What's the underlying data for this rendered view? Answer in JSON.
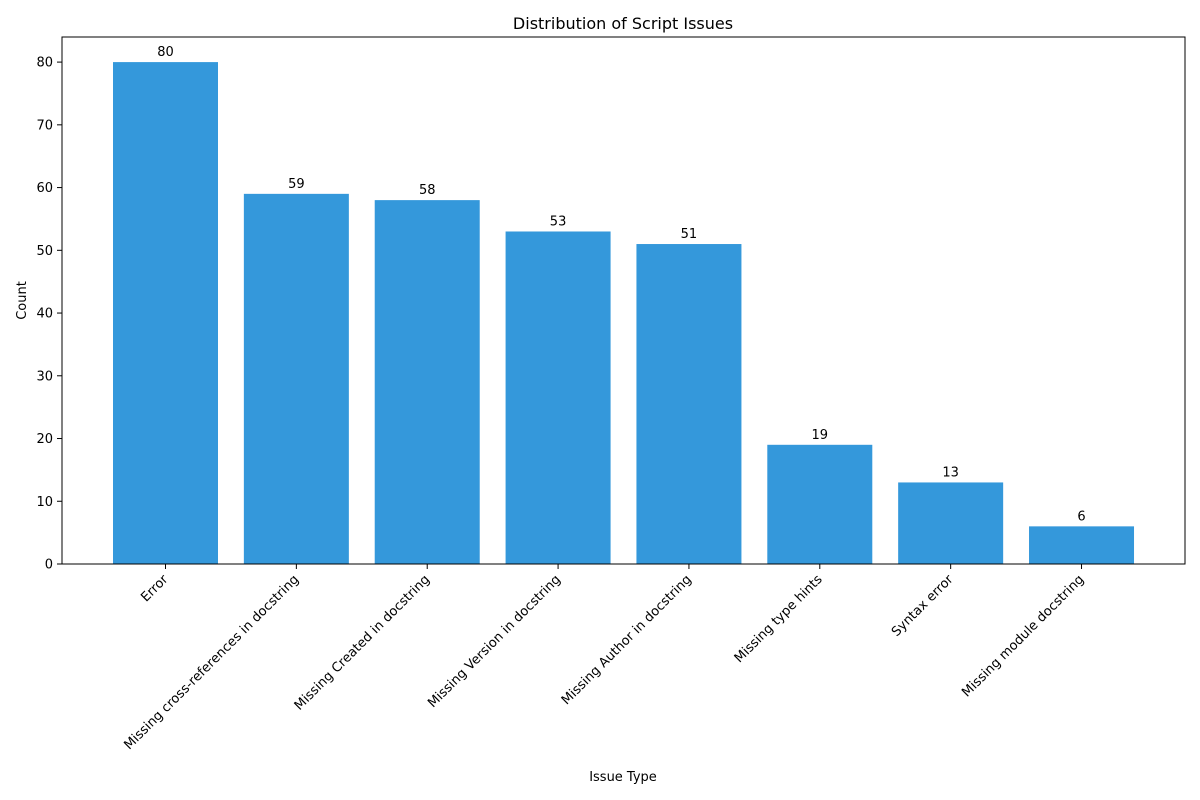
{
  "chart_data": {
    "type": "bar",
    "title": "Distribution of Script Issues",
    "xlabel": "Issue Type",
    "ylabel": "Count",
    "categories": [
      "Error",
      "Missing cross-references in docstring",
      "Missing Created in docstring",
      "Missing Version in docstring",
      "Missing Author in docstring",
      "Missing type hints",
      "Syntax error",
      "Missing module docstring"
    ],
    "values": [
      80,
      59,
      58,
      53,
      51,
      19,
      13,
      6
    ],
    "ylim": [
      0,
      84
    ],
    "yticks": [
      0,
      10,
      20,
      30,
      40,
      50,
      60,
      70,
      80
    ],
    "bar_color": "#3498db",
    "grid": false,
    "data_labels": true
  }
}
